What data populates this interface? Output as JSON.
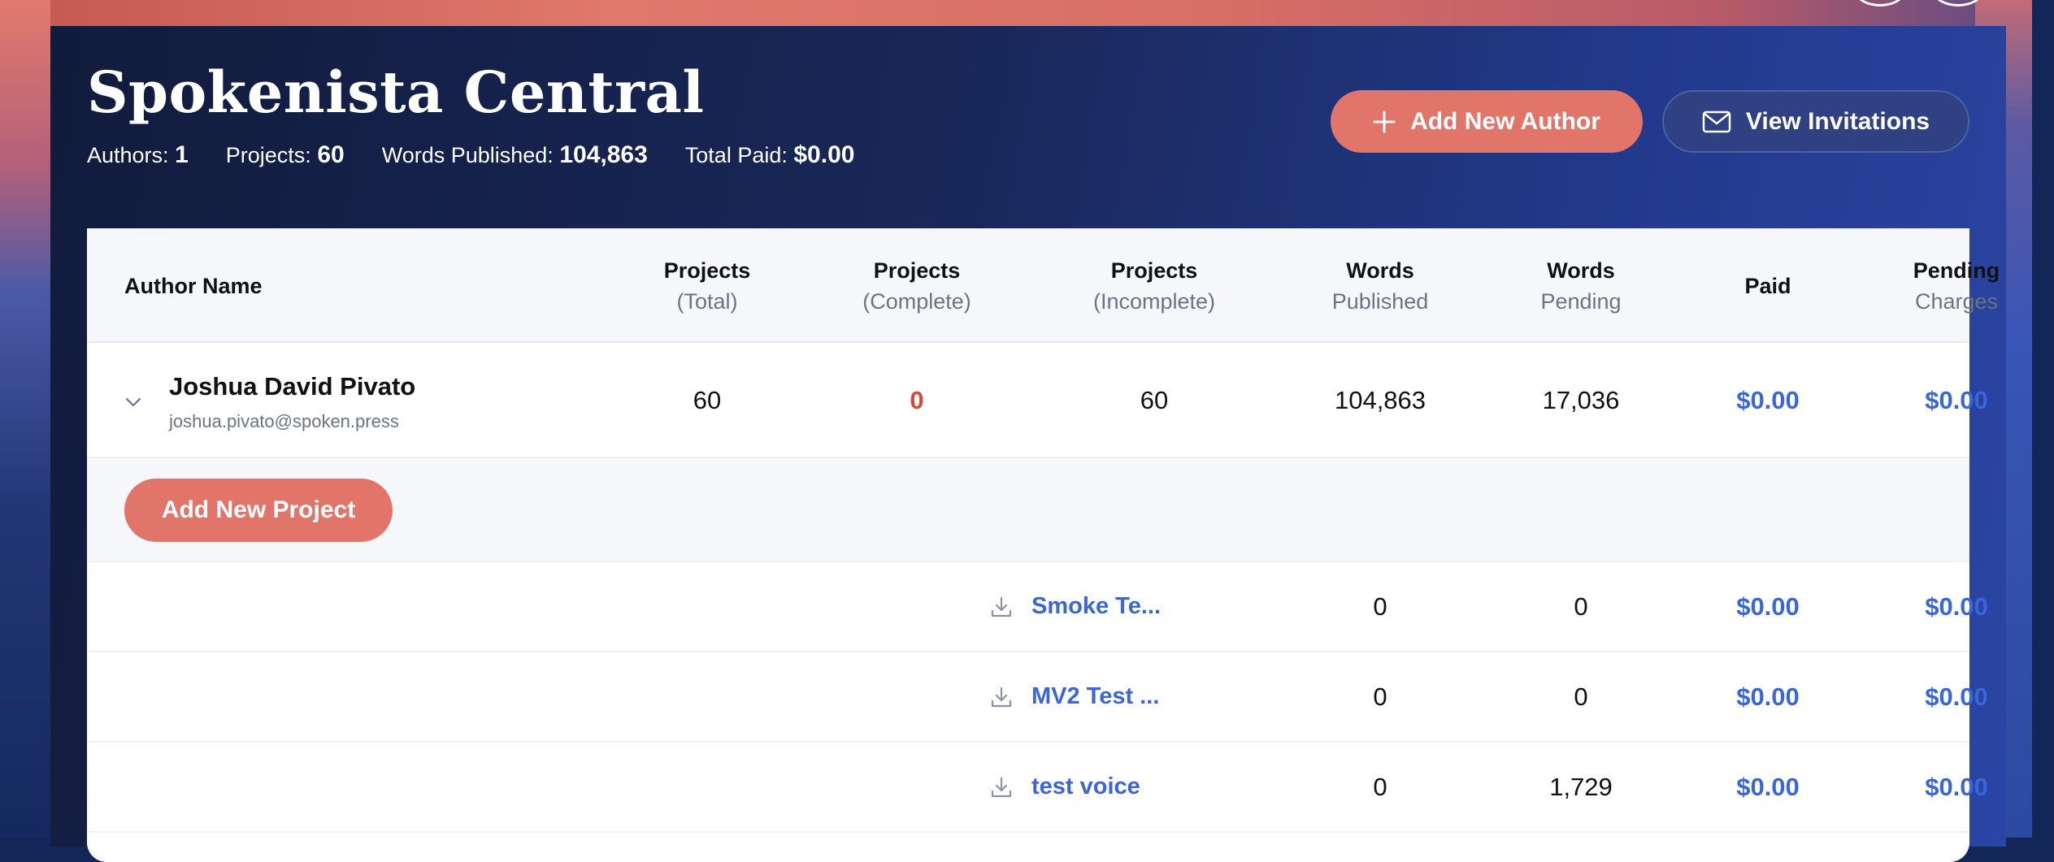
{
  "header": {
    "title": "Spokenista Central",
    "stats": {
      "authors_label": "Authors:",
      "authors_value": "1",
      "projects_label": "Projects:",
      "projects_value": "60",
      "words_label": "Words Published:",
      "words_value": "104,863",
      "paid_label": "Total Paid:",
      "paid_value": "$0.00"
    },
    "add_author_label": "Add New Author",
    "view_invitations_label": "View Invitations"
  },
  "table": {
    "columns": {
      "author_name": "Author Name",
      "projects_total": [
        "Projects",
        "(Total)"
      ],
      "projects_complete": [
        "Projects",
        "(Complete)"
      ],
      "projects_incomplete": [
        "Projects",
        "(Incomplete)"
      ],
      "words_published": [
        "Words",
        "Published"
      ],
      "words_pending": [
        "Words",
        "Pending"
      ],
      "paid": "Paid",
      "pending_charges": [
        "Pending",
        "Charges"
      ]
    },
    "author": {
      "name": "Joshua David Pivato",
      "email": "joshua.pivato@spoken.press",
      "projects_total": "60",
      "projects_complete": "0",
      "projects_incomplete": "60",
      "words_published": "104,863",
      "words_pending": "17,036",
      "paid": "$0.00",
      "pending_charges": "$0.00"
    },
    "add_project_label": "Add New Project",
    "projects": [
      {
        "name": "Smoke Te...",
        "words_published": "0",
        "words_pending": "0",
        "paid": "$0.00",
        "pending_charges": "$0.00"
      },
      {
        "name": "MV2 Test ...",
        "words_published": "0",
        "words_pending": "0",
        "paid": "$0.00",
        "pending_charges": "$0.00"
      },
      {
        "name": "test voice",
        "words_published": "0",
        "words_pending": "1,729",
        "paid": "$0.00",
        "pending_charges": "$0.00"
      }
    ]
  },
  "colors": {
    "accent_coral": "#e2756a",
    "link_blue": "#3b66d8",
    "alert_red": "#d24b38",
    "panel_dark": "#132658"
  },
  "icons": {
    "add_author": "plus-icon",
    "view_invitations": "envelope-icon",
    "expand": "chevron-down-icon",
    "project": "download-icon"
  }
}
